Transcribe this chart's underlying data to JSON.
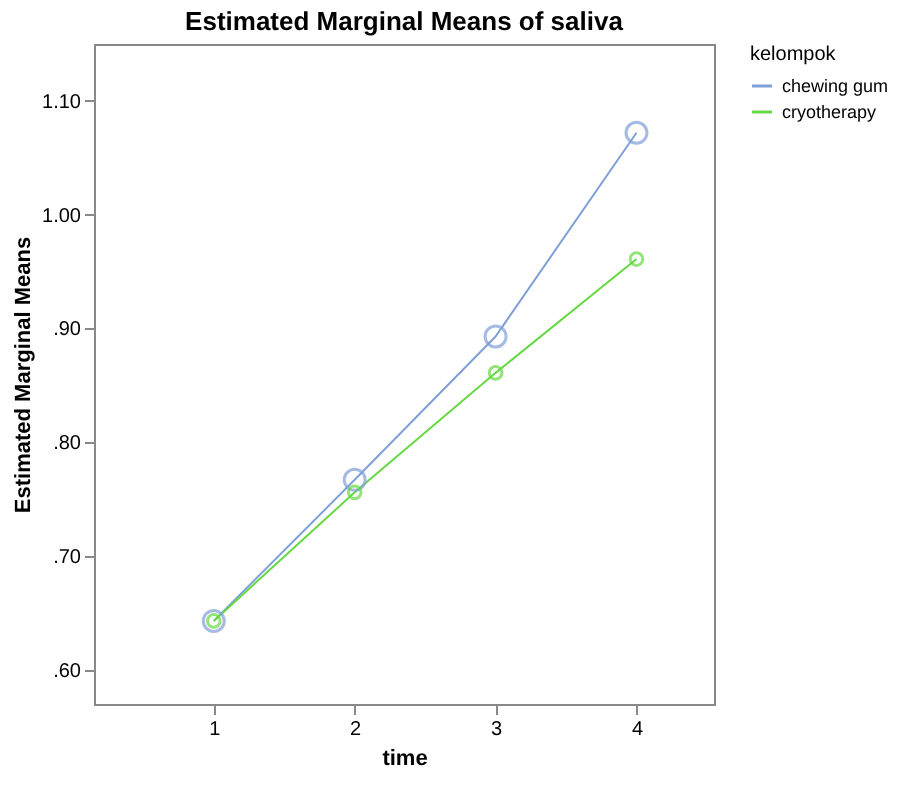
{
  "chart_data": {
    "type": "line",
    "title": "Estimated Marginal Means of saliva",
    "xlabel": "time",
    "ylabel": "Estimated Marginal Means",
    "legend_title": "kelompok",
    "x": [
      1,
      2,
      3,
      4
    ],
    "series": [
      {
        "name": "chewing gum",
        "color": "#7f9fd8",
        "values": [
          0.643,
          0.767,
          0.893,
          1.072
        ]
      },
      {
        "name": "cryotherapy",
        "color": "#66d944",
        "values": [
          0.643,
          0.756,
          0.861,
          0.961
        ]
      }
    ],
    "xlim": [
      0.15,
      4.55
    ],
    "xticks": [
      1,
      2,
      3,
      4
    ],
    "ylim": [
      0.57,
      1.15
    ],
    "yticks": [
      {
        "value": 0.6,
        "label": ".60"
      },
      {
        "value": 0.7,
        "label": ".70"
      },
      {
        "value": 0.8,
        "label": ".80"
      },
      {
        "value": 0.9,
        "label": ".90"
      },
      {
        "value": 1.0,
        "label": "1.00"
      },
      {
        "value": 1.1,
        "label": "1.10"
      }
    ],
    "marker": "circle",
    "line_style": "solid",
    "grid": false,
    "legend": "top right"
  }
}
